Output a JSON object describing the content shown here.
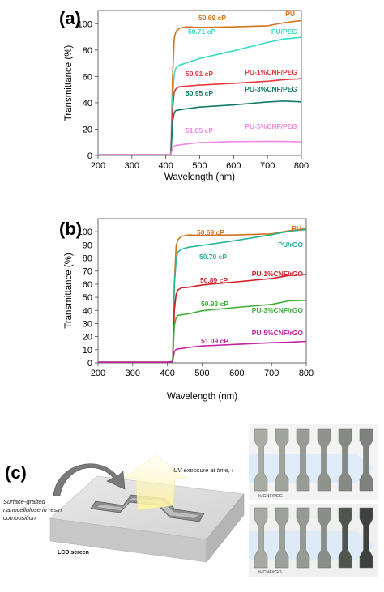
{
  "chart_data": [
    {
      "type": "line",
      "panel_label": "(a)",
      "xlabel": "Wavelength (nm)",
      "ylabel": "Transmittance (%)",
      "xlim": [
        200,
        800
      ],
      "ylim": [
        0,
        110
      ],
      "xticks": [
        200,
        300,
        400,
        500,
        600,
        700,
        800
      ],
      "yticks": [
        0,
        20,
        40,
        60,
        80,
        100
      ],
      "grid": false,
      "series": [
        {
          "name": "PU",
          "color": "#d4731c",
          "viscosity": "50.69 cP",
          "x": [
            200,
            300,
            400,
            415,
            420,
            425,
            430,
            440,
            460,
            500,
            600,
            700,
            750,
            800
          ],
          "y": [
            0.5,
            0.5,
            0.5,
            1,
            60,
            90,
            94,
            96,
            97,
            97,
            98,
            99,
            101,
            102
          ]
        },
        {
          "name": "PU/PEG",
          "color": "#36dcc4",
          "viscosity": "50.71 cP",
          "x": [
            200,
            300,
            400,
            415,
            420,
            425,
            430,
            440,
            460,
            500,
            600,
            700,
            750,
            800
          ],
          "y": [
            0.5,
            0.5,
            0.5,
            1,
            45,
            62,
            66,
            68,
            70,
            74,
            80,
            86,
            88,
            89
          ]
        },
        {
          "name": "PU-1%CNF/PEG",
          "color": "#e5393e",
          "viscosity": "50.91 cP",
          "x": [
            200,
            300,
            400,
            415,
            420,
            425,
            430,
            440,
            460,
            500,
            600,
            700,
            750,
            800
          ],
          "y": [
            0.5,
            0.5,
            0.5,
            1,
            35,
            48,
            50,
            52,
            53,
            54,
            55,
            56,
            57,
            58
          ]
        },
        {
          "name": "PU-3%CNF/PEG",
          "color": "#137a6a",
          "viscosity": "50.95 cP",
          "x": [
            200,
            300,
            400,
            415,
            420,
            425,
            430,
            440,
            460,
            500,
            600,
            700,
            750,
            800
          ],
          "y": [
            0.5,
            0.5,
            0.5,
            1,
            25,
            32,
            34,
            35,
            36,
            37,
            38,
            40,
            41,
            41
          ]
        },
        {
          "name": "PU-5%CNF/PEG",
          "color": "#ee8ae2",
          "viscosity": "51.05 cP",
          "x": [
            200,
            300,
            400,
            415,
            420,
            425,
            430,
            440,
            460,
            500,
            600,
            700,
            750,
            800
          ],
          "y": [
            0.5,
            0.5,
            0.5,
            1,
            5,
            7,
            8,
            8.5,
            9,
            9.5,
            10,
            10.5,
            11,
            11
          ]
        }
      ]
    },
    {
      "type": "line",
      "panel_label": "(b)",
      "xlabel": "Wavelength (nm)",
      "ylabel": "Transmittance (%)",
      "xlim": [
        200,
        800
      ],
      "ylim": [
        0,
        110
      ],
      "xticks": [
        200,
        300,
        400,
        500,
        600,
        700,
        800
      ],
      "yticks": [
        0,
        10,
        20,
        30,
        40,
        50,
        60,
        70,
        80,
        90,
        100
      ],
      "grid": false,
      "series": [
        {
          "name": "PU",
          "color": "#d4731c",
          "viscosity": "50.69 cP",
          "x": [
            200,
            300,
            400,
            415,
            420,
            425,
            430,
            440,
            460,
            500,
            600,
            700,
            750,
            800
          ],
          "y": [
            0.5,
            0.5,
            0.5,
            1,
            60,
            90,
            94,
            96,
            97,
            97,
            98,
            99,
            101,
            102
          ]
        },
        {
          "name": "PU/rGO",
          "color": "#23b49a",
          "viscosity": "50.70 cP",
          "x": [
            200,
            300,
            400,
            415,
            420,
            425,
            430,
            440,
            460,
            500,
            600,
            700,
            750,
            800
          ],
          "y": [
            0.5,
            0.5,
            0.5,
            1,
            60,
            78,
            84,
            86,
            88,
            90,
            94,
            98,
            100,
            101
          ]
        },
        {
          "name": "PU-1%CNF/rGO",
          "color": "#d11f26",
          "viscosity": "50.89 cP",
          "x": [
            200,
            300,
            400,
            415,
            420,
            425,
            430,
            440,
            460,
            500,
            600,
            700,
            750,
            800
          ],
          "y": [
            0.5,
            0.5,
            0.5,
            1,
            40,
            52,
            55,
            57,
            58,
            60,
            62,
            64,
            66,
            67
          ]
        },
        {
          "name": "PU-3%CNF/rGO",
          "color": "#3dae35",
          "viscosity": "50.93 cP",
          "x": [
            200,
            300,
            400,
            415,
            420,
            425,
            430,
            440,
            460,
            500,
            600,
            700,
            750,
            800
          ],
          "y": [
            0.5,
            0.5,
            0.5,
            1,
            28,
            34,
            36,
            37,
            38,
            40,
            42,
            44,
            47,
            48
          ]
        },
        {
          "name": "PU-5%CNF/rGO",
          "color": "#c4229e",
          "viscosity": "51.09 cP",
          "x": [
            200,
            300,
            400,
            415,
            420,
            425,
            430,
            440,
            460,
            500,
            600,
            700,
            750,
            800
          ],
          "y": [
            0.5,
            0.5,
            0.5,
            1,
            8,
            10,
            11,
            11.5,
            12,
            12.5,
            13.5,
            15,
            16,
            17
          ]
        }
      ]
    }
  ],
  "panel_c": {
    "panel_label": "(c)",
    "uv_label": "UV exposure at time, t",
    "resin_label": "Surface-grafted nanocellulose in resin composition",
    "lcd_label": "LCD screen",
    "peg_caption": "% CNF/PEG",
    "rgo_caption": "% CNF/rGO",
    "specimens_top": [
      "#a9aca2",
      "#a1a49c",
      "#999c94",
      "#8f938c",
      "#868a84",
      "#7d827c"
    ],
    "specimens_bottom": [
      "#a6aaa3",
      "#9da19b",
      "#959a93",
      "#8a8e88",
      "#505550",
      "#3e423e"
    ]
  }
}
